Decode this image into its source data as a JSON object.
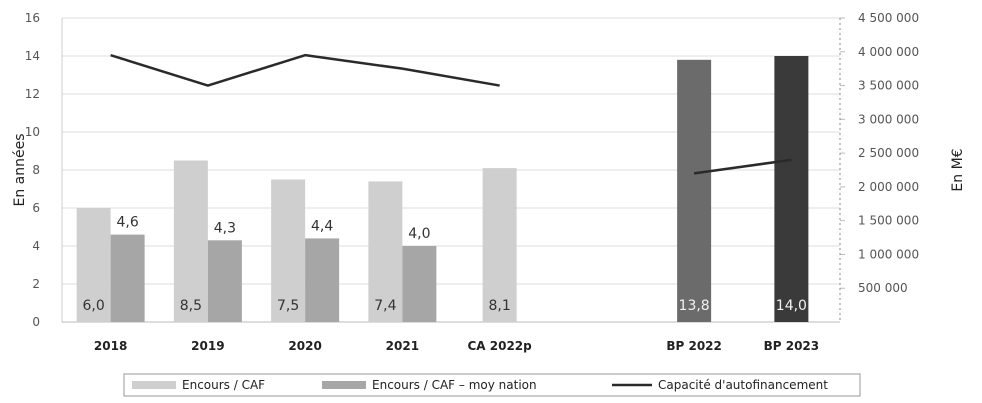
{
  "chart_data": {
    "type": "bar",
    "categories": [
      "2018",
      "2019",
      "2020",
      "2021",
      "CA 2022p",
      "",
      "BP 2022",
      "BP 2023"
    ],
    "series": [
      {
        "name": "Encours / CAF",
        "axis": "left",
        "color": "#cfcfcf",
        "values": [
          6.0,
          8.5,
          7.5,
          7.4,
          8.1,
          null,
          null,
          null
        ],
        "labels": [
          "6,0",
          "8,5",
          "7,5",
          "7,4",
          "8,1",
          "",
          "",
          ""
        ]
      },
      {
        "name": "Encours / CAF – moy nation",
        "axis": "left",
        "color": "#a6a6a6",
        "values": [
          4.6,
          4.3,
          4.4,
          4.0,
          null,
          null,
          null,
          null
        ],
        "labels": [
          "4,6",
          "4,3",
          "4,4",
          "4,0",
          "",
          "",
          "",
          ""
        ]
      },
      {
        "name": "",
        "axis": "left",
        "colors": [
          "#6b6b6b",
          "#3a3a3a"
        ],
        "values": [
          null,
          null,
          null,
          null,
          null,
          null,
          13.8,
          14.0
        ],
        "labels": [
          "",
          "",
          "",
          "",
          "",
          "",
          "13,8",
          "14,0"
        ]
      },
      {
        "name": "Capacité d'autofinancement",
        "axis": "right",
        "type": "line",
        "color": "#2a2a2a",
        "segments": [
          {
            "x": [
              "2018",
              "2019",
              "2020",
              "2021",
              "CA 2022p"
            ],
            "values": [
              3950000,
              3500000,
              3950000,
              3750000,
              3500000
            ]
          },
          {
            "x": [
              "BP 2022",
              "BP 2023"
            ],
            "values": [
              2200000,
              2400000
            ]
          }
        ]
      }
    ],
    "y_left": {
      "label": "En années",
      "range": [
        0,
        16
      ],
      "ticks": [
        0,
        2,
        4,
        6,
        8,
        10,
        12,
        14,
        16
      ],
      "tick_labels": [
        "0",
        "2",
        "4",
        "6",
        "8",
        "10",
        "12",
        "14",
        "16"
      ]
    },
    "y_right": {
      "label": "En M€",
      "range": [
        0,
        4500000
      ],
      "ticks": [
        500000,
        1000000,
        1500000,
        2000000,
        2500000,
        3000000,
        3500000,
        4000000,
        4500000
      ],
      "tick_labels": [
        "500 000",
        "1 000 000",
        "1 500 000",
        "2 000 000",
        "2 500 000",
        "3 000 000",
        "3 500 000",
        "4 000 000",
        "4 500 000"
      ]
    },
    "grid": true,
    "legend_position": "bottom"
  }
}
